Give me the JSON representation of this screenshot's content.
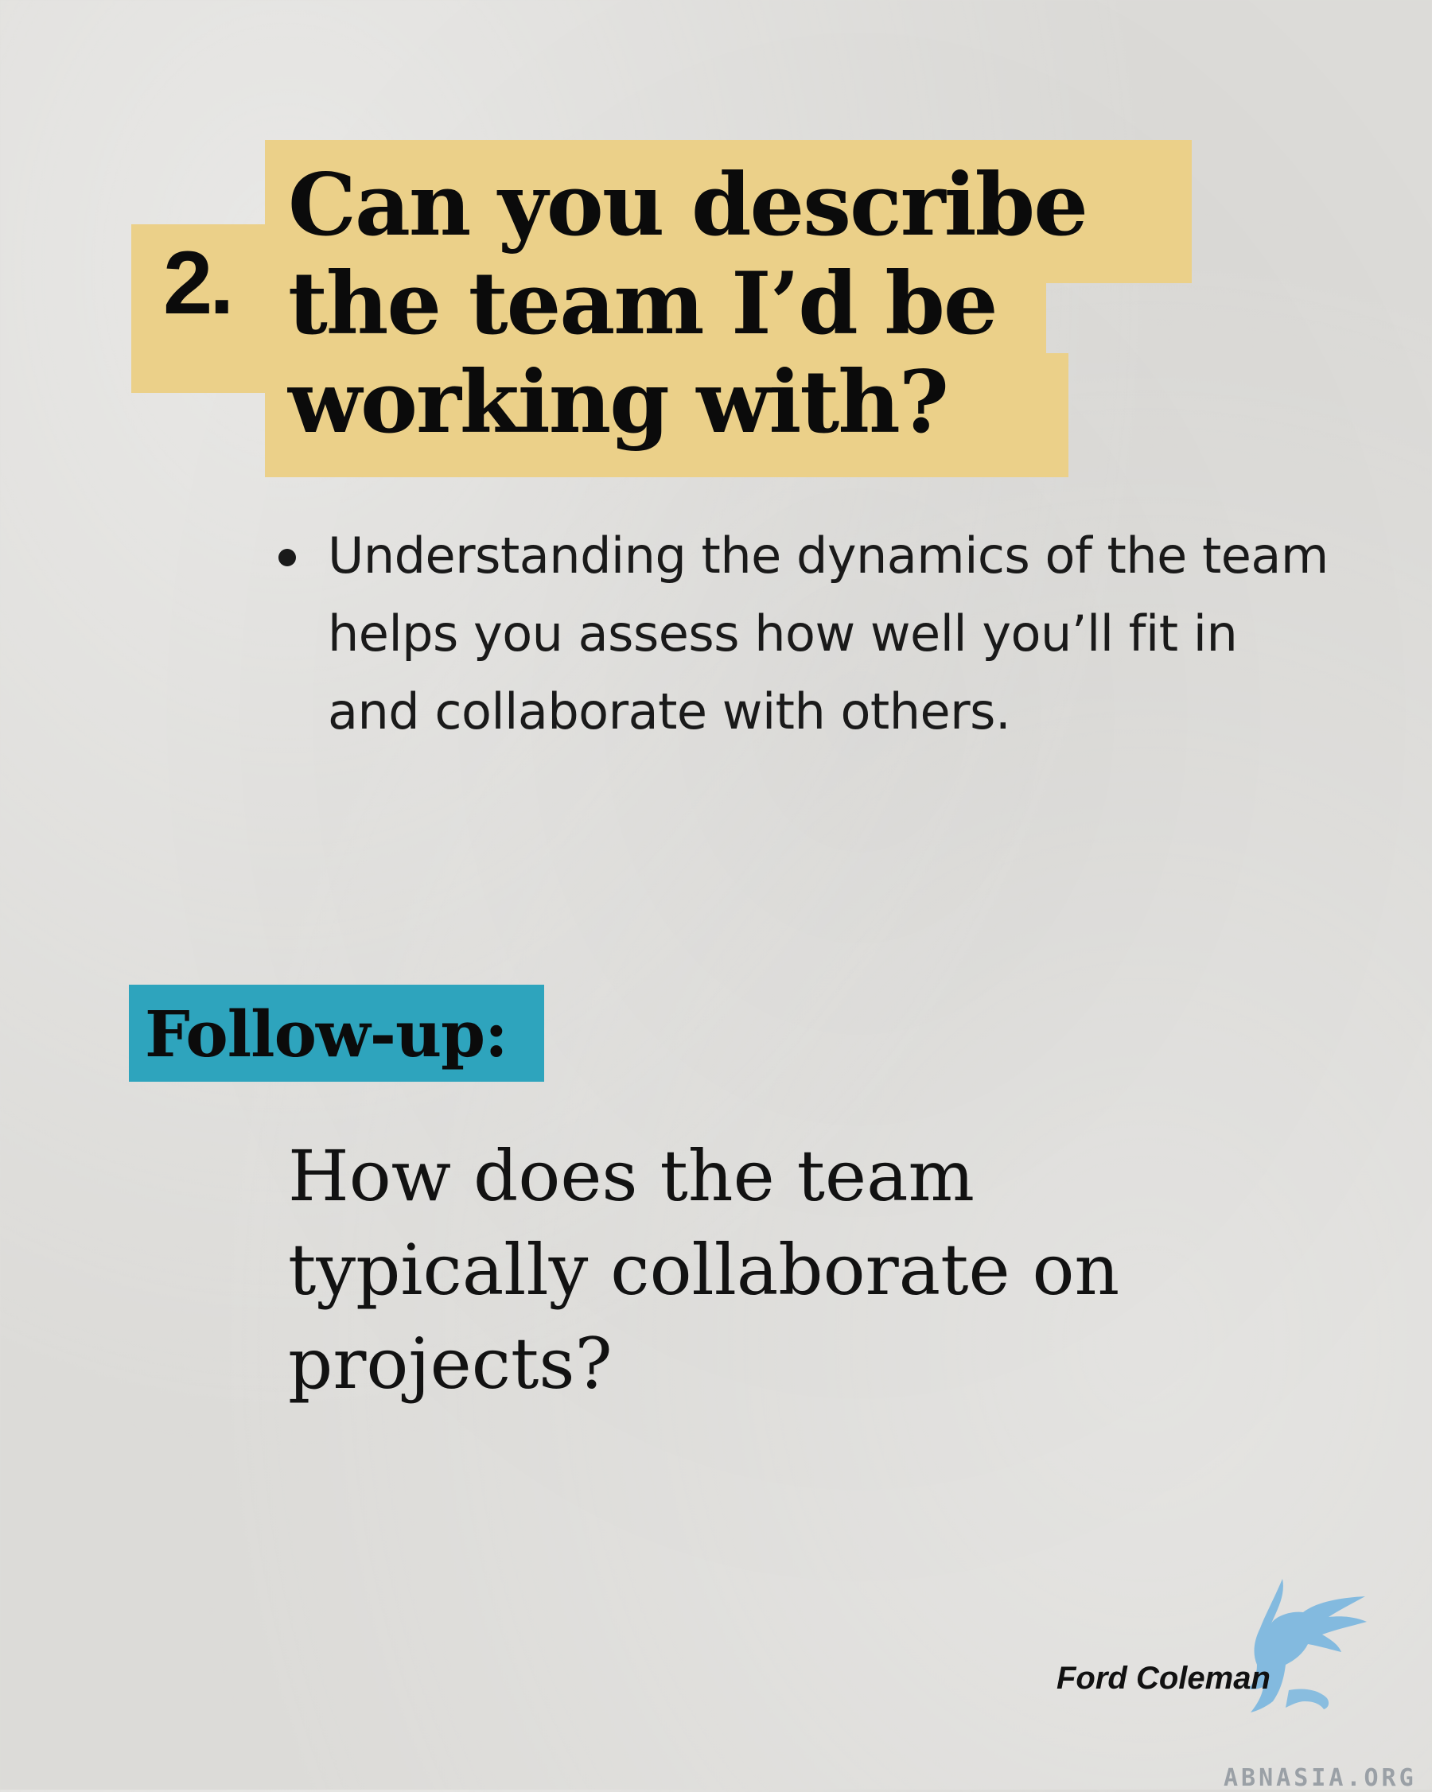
{
  "question": {
    "number": "2.",
    "title": "Can you describe\nthe team I’d be\nworking with?",
    "bullets": [
      "Understanding the dynamics of the team helps you assess how well you’ll fit in and collaborate with others."
    ]
  },
  "followup": {
    "label": "Follow-up:",
    "question": "How does the team\ntypically collaborate on\nprojects?"
  },
  "footer": {
    "author": "Ford Coleman",
    "logo_icon": "griffin-logo-icon",
    "site": "ABNASIA.ORG"
  },
  "colors": {
    "background": "#dcdbd8",
    "title_highlight": "#ebd089",
    "followup_highlight": "#2ea4bd",
    "logo": "#79b6df",
    "site_text": "#9aa0a6"
  }
}
